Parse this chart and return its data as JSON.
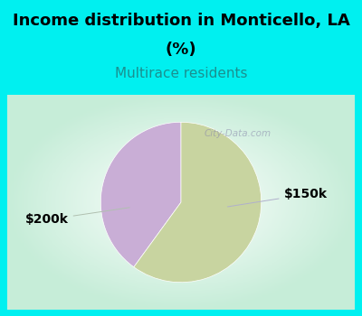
{
  "title_line1": "Income distribution in Monticello, LA",
  "title_line2": "(%)",
  "subtitle": "Multirace residents",
  "slices": [
    40,
    60
  ],
  "labels": [
    "$150k",
    "$200k"
  ],
  "colors": [
    "#c9aed6",
    "#c8d4a0"
  ],
  "background_color": "#00f0f0",
  "title_fontsize": 13,
  "subtitle_fontsize": 11,
  "subtitle_color": "#1a9090",
  "label_fontsize": 10,
  "startangle": 90,
  "watermark": "City-Data.com"
}
